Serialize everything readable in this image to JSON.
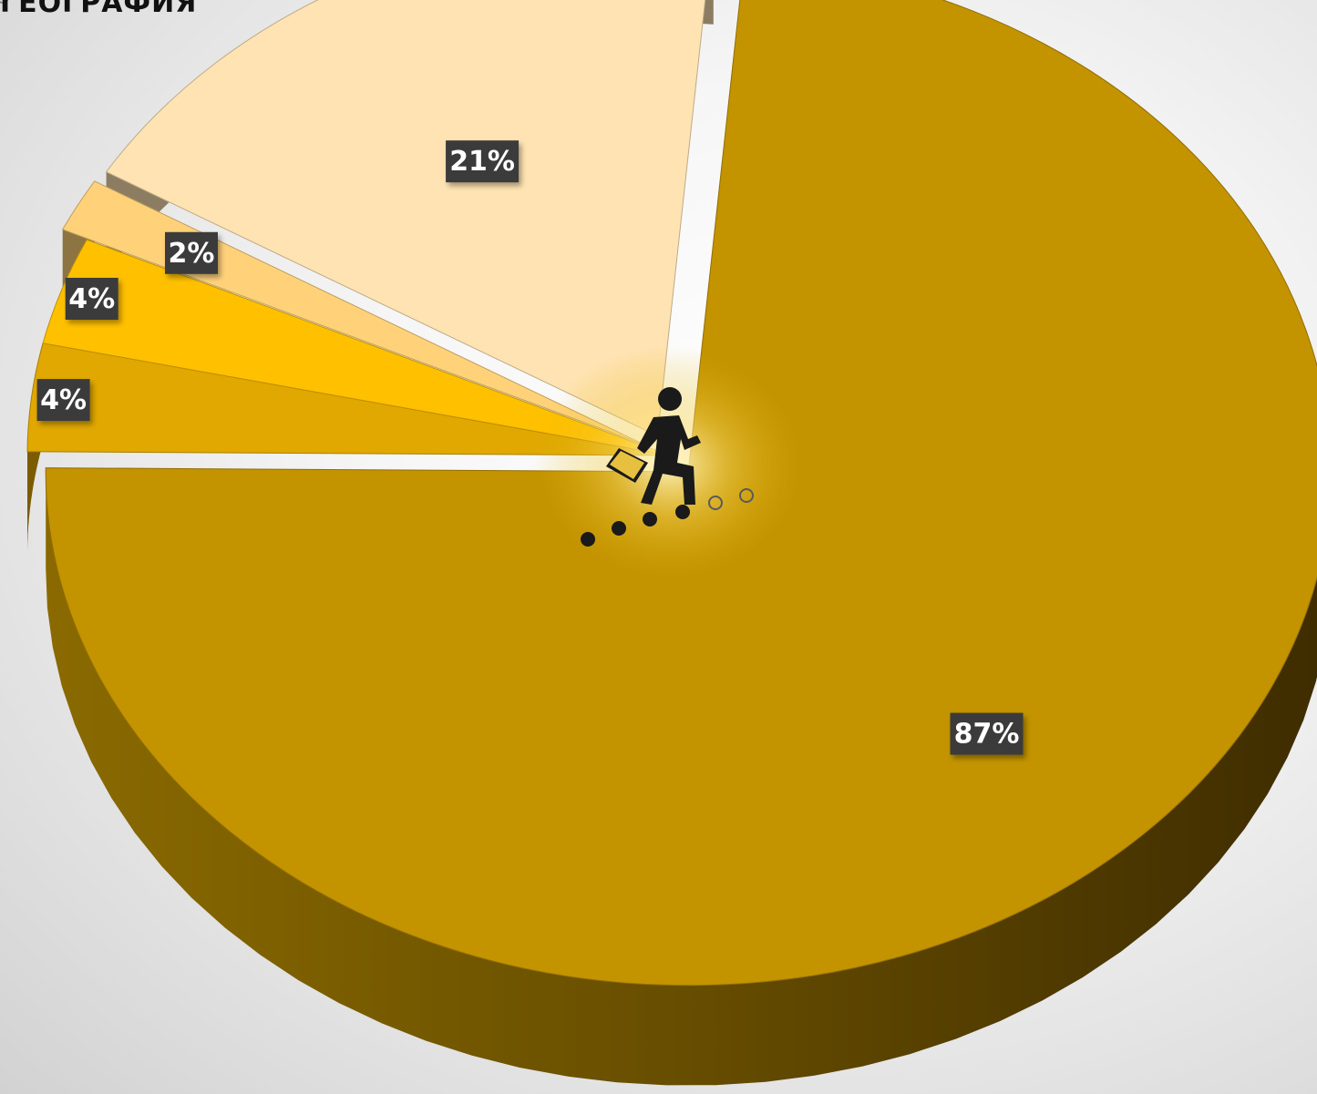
{
  "title": "ГЕОГРАФИЯ",
  "chart_data": {
    "type": "pie",
    "title": "ГЕОГРАФИЯ",
    "values": [
      87,
      4,
      4,
      2,
      21
    ],
    "labels": [
      "87%",
      "4%",
      "4%",
      "2%",
      "21%"
    ],
    "colors": [
      "#C39300",
      "#E0A800",
      "#FFC000",
      "#FFD27A",
      "#FFE3B2"
    ],
    "exploded_slices": [
      0,
      3,
      4
    ],
    "style": "3d-pie",
    "center_icon": "walking-businessman-icon"
  }
}
